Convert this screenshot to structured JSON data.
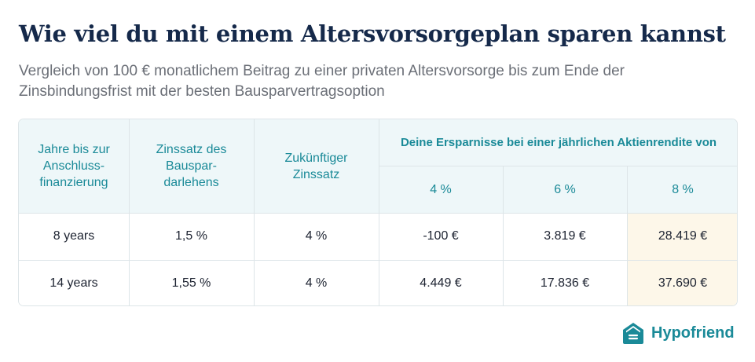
{
  "title": "Wie viel du mit einem Altersvorsorgeplan sparen kannst",
  "subtitle": "Vergleich von 100 € monatlichem Beitrag zu einer privaten Altersvorsorge bis zum Ende der Zinsbindungsfrist mit der besten Bausparvertragsoption",
  "table": {
    "headers": {
      "years": "Jahre bis zur Anschluss-finanzierung",
      "loan_rate": "Zinssatz des Bauspar-darlehens",
      "future_rate": "Zukünftiger Zinssatz",
      "savings_group": "Deine Ersparnisse bei einer jährlichen Aktienrendite von",
      "returns": [
        "4 %",
        "6 %",
        "8 %"
      ]
    },
    "rows": [
      {
        "years": "8 years",
        "loan_rate": "1,5 %",
        "future_rate": "4 %",
        "savings": [
          "-100 €",
          "3.819 €",
          "28.419 €"
        ]
      },
      {
        "years": "14 years",
        "loan_rate": "1,55 %",
        "future_rate": "4 %",
        "savings": [
          "4.449 €",
          "17.836 €",
          "37.690 €"
        ]
      }
    ],
    "highlight_color": "#fdf7e9",
    "header_color": "#eef7f9",
    "accent_color": "#1a8a98"
  },
  "brand": {
    "name": "Hypofriend",
    "icon": "house-logo-icon"
  }
}
